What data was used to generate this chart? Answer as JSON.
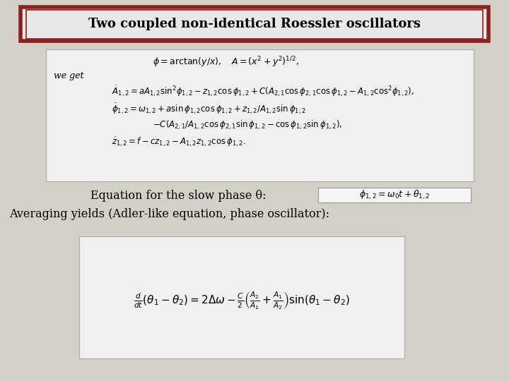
{
  "bg_color": "#d4d0c8",
  "title_text": "Two coupled non-identical Roessler oscillators",
  "title_box_bg": "#e8e8e8",
  "title_box_edge_outer": "#8b2020",
  "title_box_edge_inner": "#8b2020",
  "eq_box_bg": "#f0f0f0",
  "eq_box_edge": "#aaaaaa",
  "eq1_we_get": "we get",
  "slow_phase_text": "Equation for the slow phase θ:",
  "adler_text": "Averaging yields (Adler-like equation, phase oscillator):"
}
